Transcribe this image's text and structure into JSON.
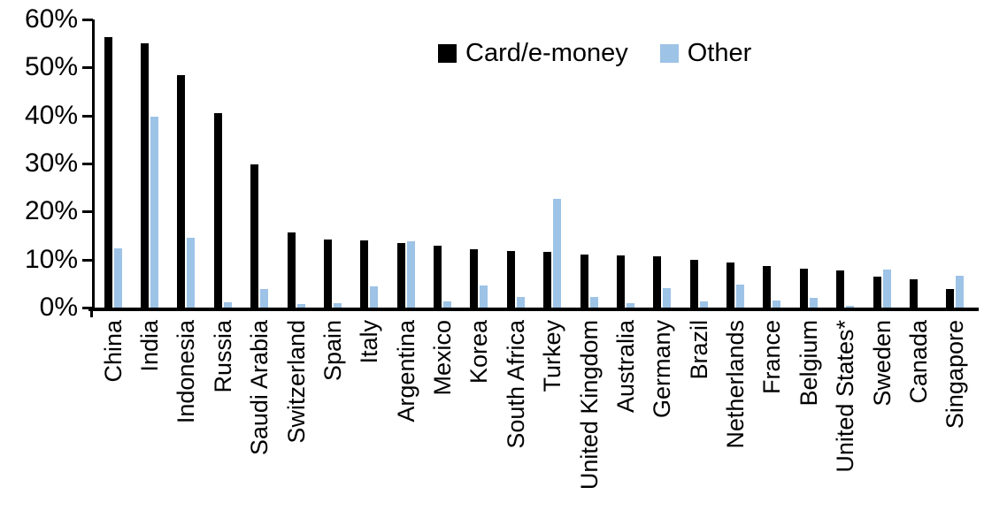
{
  "chart_data": {
    "type": "bar",
    "title": "",
    "xlabel": "",
    "ylabel": "",
    "ylim": [
      0,
      60
    ],
    "ytick_step": 10,
    "ytick_labels": [
      "0%",
      "10%",
      "20%",
      "30%",
      "40%",
      "50%",
      "60%"
    ],
    "grid": false,
    "legend_position": "top-center",
    "categories": [
      "China",
      "India",
      "Indonesia",
      "Russia",
      "Saudi Arabia",
      "Switzerland",
      "Spain",
      "Italy",
      "Argentina",
      "Mexico",
      "Korea",
      "South Africa",
      "Turkey",
      "United Kingdom",
      "Australia",
      "Germany",
      "Brazil",
      "Netherlands",
      "France",
      "Belgium",
      "United States*",
      "Sweden",
      "Canada",
      "Singapore"
    ],
    "series": [
      {
        "name": "Card/e-money",
        "color": "#000000",
        "values": [
          56.3,
          55.1,
          48.4,
          40.4,
          29.8,
          15.6,
          14.1,
          14.0,
          13.4,
          12.9,
          12.2,
          11.7,
          11.6,
          11.0,
          10.8,
          10.6,
          9.9,
          9.3,
          8.6,
          8.1,
          7.8,
          6.5,
          5.9,
          3.9
        ]
      },
      {
        "name": "Other",
        "color": "#9DC3E6",
        "values": [
          12.3,
          39.7,
          14.5,
          1.1,
          3.9,
          0.8,
          1.0,
          4.5,
          13.8,
          1.3,
          4.6,
          2.3,
          22.6,
          2.3,
          1.0,
          4.0,
          1.2,
          4.8,
          1.5,
          2.0,
          0.3,
          8.0,
          0,
          6.6
        ]
      }
    ]
  }
}
